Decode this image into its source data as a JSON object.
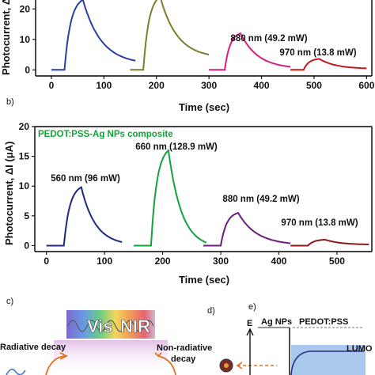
{
  "chart_data": [
    {
      "type": "line",
      "panel_label": "",
      "xlabel": "Time (sec)",
      "ylabel": "Photocurrent, ΔI (μA)",
      "xlim": [
        -30,
        610
      ],
      "ylim": [
        -2,
        25
      ],
      "xticks": [
        0,
        100,
        200,
        300,
        400,
        500,
        600
      ],
      "yticks": [
        0,
        10,
        20
      ],
      "annotations": [
        "880 nm (49.2 mW)",
        "970 nm (13.8 mW)"
      ],
      "series": [
        {
          "color": "#2b3f9c",
          "start": 0,
          "on": 25,
          "peak_t": 60,
          "peak": 23,
          "decay_end": 160,
          "final": 3
        },
        {
          "color": "#7f7d2b",
          "start": 150,
          "on": 175,
          "peak_t": 207,
          "peak": 24,
          "decay_end": 300,
          "final": 5
        },
        {
          "color": "#d61f7c",
          "start": 300,
          "on": 330,
          "peak_t": 360,
          "peak": 12,
          "decay_end": 455,
          "final": 1
        },
        {
          "color": "#c21a1a",
          "start": 455,
          "on": 480,
          "peak_t": 510,
          "peak": 3.6,
          "decay_end": 600,
          "final": 0.5
        }
      ]
    },
    {
      "type": "line",
      "panel_label": "b)",
      "legend": "PEDOT:PSS-Ag NPs composite",
      "xlabel": "Time (sec)",
      "ylabel": "Photocurrent, ΔI (μA)",
      "xlim": [
        -20,
        560
      ],
      "ylim": [
        -1,
        20
      ],
      "xticks": [
        0,
        100,
        200,
        300,
        400,
        500
      ],
      "yticks": [
        0,
        5,
        10,
        15,
        20
      ],
      "annotations": [
        "560 nm (96 mW)",
        "660 nm (128.9 mW)",
        "880 nm (49.2 mW)",
        "970 nm (13.8 mW)"
      ],
      "series": [
        {
          "color": "#1f2a7a",
          "start": 0,
          "on": 30,
          "peak_t": 60,
          "peak": 9.8,
          "decay_end": 130,
          "final": 0.6
        },
        {
          "color": "#13a33a",
          "start": 150,
          "on": 180,
          "peak_t": 210,
          "peak": 16,
          "decay_end": 275,
          "final": 0.5
        },
        {
          "color": "#6b1f7a",
          "start": 270,
          "on": 300,
          "peak_t": 330,
          "peak": 5.5,
          "decay_end": 420,
          "final": 0.4
        },
        {
          "color": "#8a1a1a",
          "start": 420,
          "on": 450,
          "peak_t": 480,
          "peak": 1.0,
          "decay_end": 555,
          "final": 0.2
        }
      ]
    }
  ],
  "panels": {
    "c_label": "c)",
    "d_label": "d)",
    "e_label": "e)",
    "vis": "Vis",
    "nir": "NIR",
    "radiative": "Radiative decay",
    "nonradiative_1": "Non-radiative",
    "nonradiative_2": "decay",
    "e_axis": "E",
    "ag_nps": "Ag NPs",
    "pedot": "PEDOT:PSS",
    "lumo": "LUMO"
  }
}
